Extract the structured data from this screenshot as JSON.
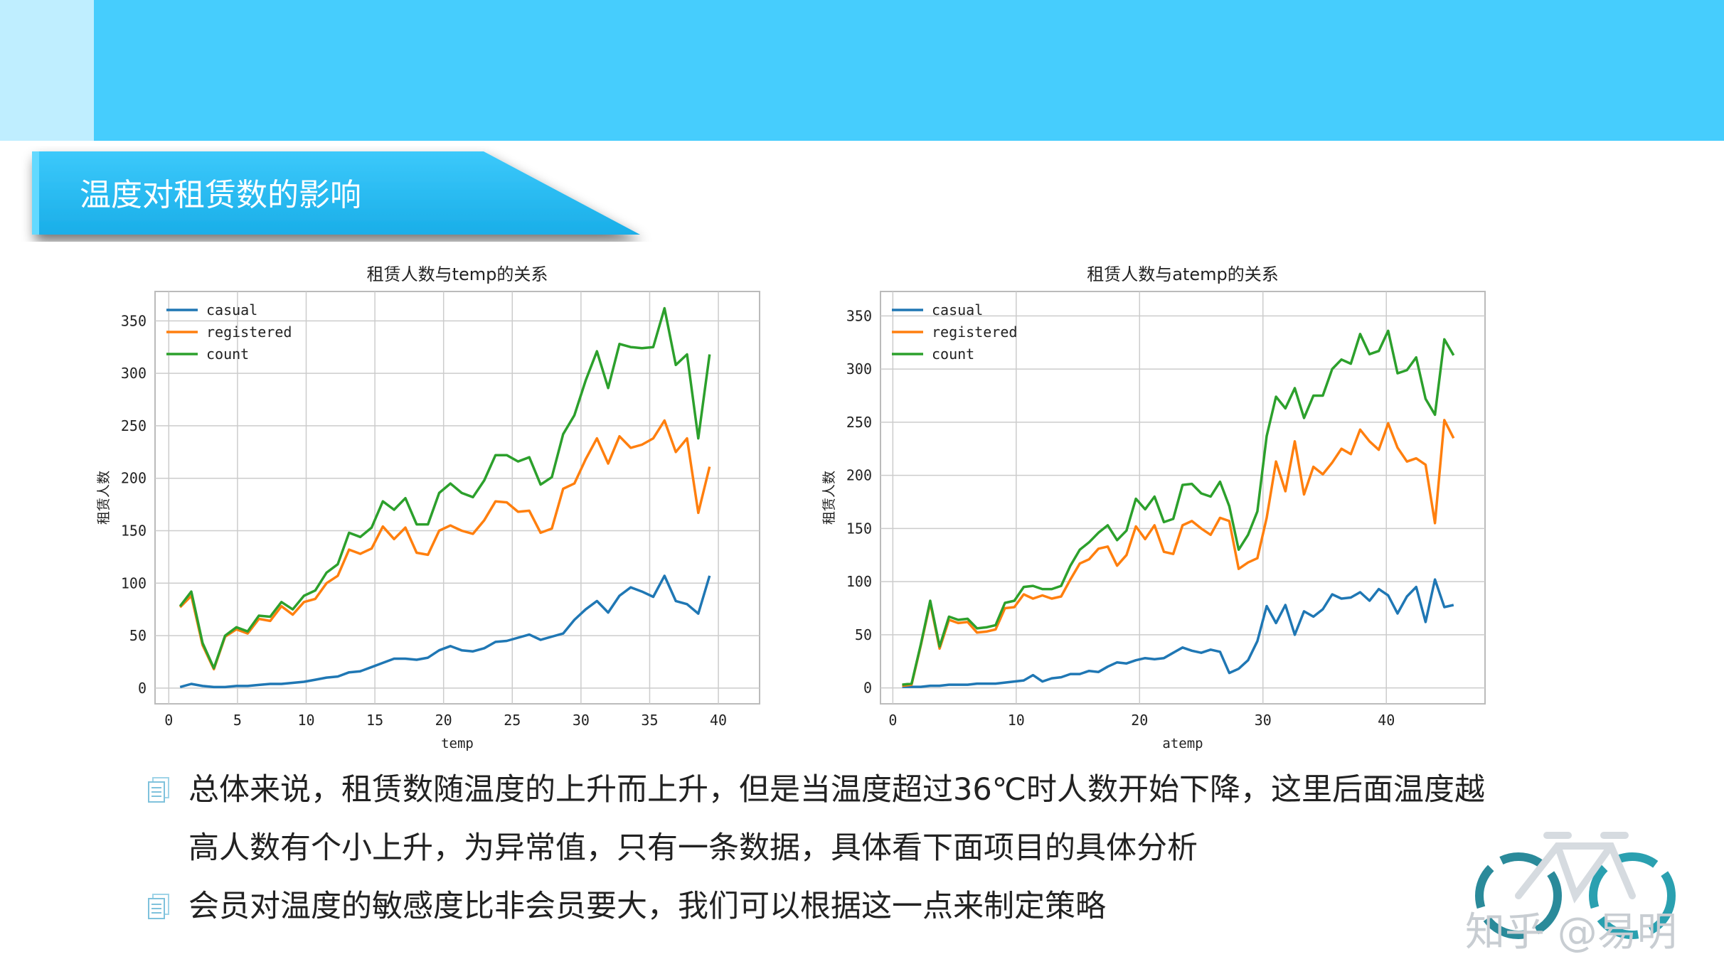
{
  "slide": {
    "title": "温度对租赁数的影响",
    "bullets": [
      "总体来说，租赁数随温度的上升而上升，但是当温度超过36℃时人数开始下降，这里后面温度越高人数有个小上升，为异常值，只有一条数据，具体看下面项目的具体分析",
      "会员对温度的敏感度比非会员要大，我们可以根据这一点来制定策略"
    ],
    "watermark": "知乎 @易明",
    "colors": {
      "accent": "#46cdfd",
      "accent_light": "#bfeeff",
      "casual": "#1f77b4",
      "registered": "#ff7f0e",
      "count": "#2ca02c"
    }
  },
  "chart_data": [
    {
      "type": "line",
      "title": "租赁人数与temp的关系",
      "xlabel": "temp",
      "ylabel": "租赁人数",
      "xlim": [
        -1,
        43
      ],
      "ylim": [
        -15,
        378
      ],
      "xticks": [
        0,
        5,
        10,
        15,
        20,
        25,
        30,
        35,
        40
      ],
      "yticks": [
        0,
        50,
        100,
        150,
        200,
        250,
        300,
        350
      ],
      "grid": true,
      "legend": "top-left",
      "series": [
        {
          "name": "casual",
          "x": [
            0.82,
            1.64,
            2.46,
            3.28,
            4.1,
            4.92,
            5.74,
            6.56,
            7.38,
            8.2,
            9.02,
            9.84,
            10.66,
            11.48,
            12.3,
            13.12,
            13.94,
            14.76,
            15.58,
            16.4,
            17.22,
            18.04,
            18.86,
            19.68,
            20.5,
            21.32,
            22.14,
            22.96,
            23.78,
            24.6,
            25.42,
            26.24,
            27.06,
            27.88,
            28.7,
            29.52,
            30.34,
            31.16,
            31.98,
            32.8,
            33.62,
            34.44,
            35.26,
            36.08,
            36.9,
            37.72,
            38.54,
            39.36
          ],
          "values": [
            1,
            4,
            2,
            1,
            1,
            2,
            2,
            3,
            4,
            4,
            5,
            6,
            8,
            10,
            11,
            15,
            16,
            20,
            24,
            28,
            28,
            27,
            29,
            36,
            40,
            36,
            35,
            38,
            44,
            45,
            48,
            51,
            46,
            49,
            52,
            65,
            75,
            83,
            72,
            88,
            96,
            92,
            87,
            107,
            83,
            80,
            71,
            107
          ]
        },
        {
          "name": "registered",
          "x": [
            0.82,
            1.64,
            2.46,
            3.28,
            4.1,
            4.92,
            5.74,
            6.56,
            7.38,
            8.2,
            9.02,
            9.84,
            10.66,
            11.48,
            12.3,
            13.12,
            13.94,
            14.76,
            15.58,
            16.4,
            17.22,
            18.04,
            18.86,
            19.68,
            20.5,
            21.32,
            22.14,
            22.96,
            23.78,
            24.6,
            25.42,
            26.24,
            27.06,
            27.88,
            28.7,
            29.52,
            30.34,
            31.16,
            31.98,
            32.8,
            33.62,
            34.44,
            35.26,
            36.08,
            36.9,
            37.72,
            38.54,
            39.36
          ],
          "values": [
            77,
            88,
            41,
            18,
            49,
            56,
            52,
            66,
            64,
            78,
            70,
            82,
            85,
            100,
            107,
            132,
            128,
            133,
            154,
            142,
            153,
            129,
            127,
            150,
            155,
            150,
            147,
            160,
            178,
            177,
            168,
            169,
            148,
            152,
            190,
            195,
            218,
            238,
            214,
            240,
            229,
            232,
            238,
            255,
            225,
            238,
            167,
            211
          ]
        },
        {
          "name": "count",
          "x": [
            0.82,
            1.64,
            2.46,
            3.28,
            4.1,
            4.92,
            5.74,
            6.56,
            7.38,
            8.2,
            9.02,
            9.84,
            10.66,
            11.48,
            12.3,
            13.12,
            13.94,
            14.76,
            15.58,
            16.4,
            17.22,
            18.04,
            18.86,
            19.68,
            20.5,
            21.32,
            22.14,
            22.96,
            23.78,
            24.6,
            25.42,
            26.24,
            27.06,
            27.88,
            28.7,
            29.52,
            30.34,
            31.16,
            31.98,
            32.8,
            33.62,
            34.44,
            35.26,
            36.08,
            36.9,
            37.72,
            38.54,
            39.36
          ],
          "values": [
            78,
            92,
            43,
            19,
            50,
            58,
            54,
            69,
            68,
            82,
            75,
            88,
            93,
            110,
            118,
            148,
            144,
            153,
            178,
            170,
            181,
            156,
            156,
            186,
            195,
            186,
            182,
            198,
            222,
            222,
            216,
            220,
            194,
            201,
            242,
            260,
            293,
            321,
            286,
            328,
            325,
            324,
            325,
            362,
            308,
            318,
            238,
            318
          ]
        }
      ]
    },
    {
      "type": "line",
      "title": "租赁人数与atemp的关系",
      "xlabel": "atemp",
      "ylabel": "租赁人数",
      "xlim": [
        -1,
        48
      ],
      "ylim": [
        -15,
        373
      ],
      "xticks": [
        0,
        10,
        20,
        30,
        40
      ],
      "yticks": [
        0,
        50,
        100,
        150,
        200,
        250,
        300,
        350
      ],
      "grid": true,
      "legend": "top-left",
      "series": [
        {
          "name": "casual",
          "x": [
            0.76,
            1.52,
            2.27,
            3.03,
            3.79,
            4.55,
            5.3,
            6.06,
            6.82,
            7.58,
            8.33,
            9.09,
            9.85,
            10.61,
            11.36,
            12.12,
            12.88,
            13.64,
            14.39,
            15.15,
            15.91,
            16.67,
            17.42,
            18.18,
            18.94,
            19.7,
            20.45,
            21.21,
            21.97,
            22.73,
            23.48,
            24.24,
            25.0,
            25.76,
            26.52,
            27.27,
            28.03,
            28.79,
            29.55,
            30.3,
            31.06,
            31.82,
            32.58,
            33.33,
            34.09,
            34.85,
            35.61,
            36.36,
            37.12,
            37.88,
            38.64,
            39.39,
            40.15,
            40.91,
            41.67,
            42.42,
            43.18,
            43.94,
            44.7,
            45.45
          ],
          "values": [
            1,
            1,
            1,
            2,
            2,
            3,
            3,
            3,
            4,
            4,
            4,
            5,
            6,
            7,
            12,
            6,
            9,
            10,
            13,
            13,
            16,
            15,
            20,
            24,
            23,
            26,
            28,
            27,
            28,
            33,
            38,
            35,
            33,
            36,
            34,
            14,
            18,
            26,
            44,
            77,
            61,
            78,
            50,
            72,
            67,
            74,
            88,
            84,
            85,
            90,
            82,
            93,
            87,
            70,
            86,
            95,
            62,
            102,
            76,
            78
          ],
          "trim_note": ""
        },
        {
          "name": "registered",
          "x": [
            0.76,
            1.52,
            2.27,
            3.03,
            3.79,
            4.55,
            5.3,
            6.06,
            6.82,
            7.58,
            8.33,
            9.09,
            9.85,
            10.61,
            11.36,
            12.12,
            12.88,
            13.64,
            14.39,
            15.15,
            15.91,
            16.67,
            17.42,
            18.18,
            18.94,
            19.7,
            20.45,
            21.21,
            21.97,
            22.73,
            23.48,
            24.24,
            25.0,
            25.76,
            26.52,
            27.27,
            28.03,
            28.79,
            29.55,
            30.3,
            31.06,
            31.82,
            32.58,
            33.33,
            34.09,
            34.85,
            35.61,
            36.36,
            37.12,
            37.88,
            38.64,
            39.39,
            40.15,
            40.91,
            41.67,
            42.42,
            43.18,
            43.94,
            44.7,
            45.45
          ],
          "values": [
            2,
            3,
            40,
            80,
            37,
            64,
            61,
            62,
            52,
            53,
            55,
            75,
            76,
            88,
            84,
            87,
            84,
            86,
            102,
            117,
            121,
            131,
            133,
            115,
            125,
            152,
            140,
            153,
            128,
            126,
            153,
            157,
            150,
            144,
            160,
            157,
            112,
            118,
            122,
            160,
            213,
            185,
            232,
            182,
            208,
            201,
            212,
            225,
            220,
            243,
            232,
            224,
            249,
            226,
            213,
            216,
            210,
            155,
            252,
            235
          ]
        },
        {
          "name": "count",
          "x": [
            0.76,
            1.52,
            2.27,
            3.03,
            3.79,
            4.55,
            5.3,
            6.06,
            6.82,
            7.58,
            8.33,
            9.09,
            9.85,
            10.61,
            11.36,
            12.12,
            12.88,
            13.64,
            14.39,
            15.15,
            15.91,
            16.67,
            17.42,
            18.18,
            18.94,
            19.7,
            20.45,
            21.21,
            21.97,
            22.73,
            23.48,
            24.24,
            25.0,
            25.76,
            26.52,
            27.27,
            28.03,
            28.79,
            29.55,
            30.3,
            31.06,
            31.82,
            32.58,
            33.33,
            34.09,
            34.85,
            35.61,
            36.36,
            37.12,
            37.88,
            38.64,
            39.39,
            40.15,
            40.91,
            41.67,
            42.42,
            43.18,
            43.94,
            44.7,
            45.45
          ],
          "values": [
            3,
            4,
            41,
            82,
            39,
            67,
            64,
            65,
            56,
            57,
            59,
            80,
            82,
            95,
            96,
            93,
            93,
            96,
            115,
            130,
            137,
            146,
            153,
            139,
            148,
            178,
            168,
            180,
            156,
            159,
            191,
            192,
            183,
            180,
            194,
            171,
            130,
            144,
            166,
            237,
            274,
            263,
            282,
            254,
            275,
            275,
            300,
            309,
            305,
            333,
            314,
            317,
            336,
            296,
            299,
            311,
            272,
            257,
            328,
            313
          ]
        }
      ]
    }
  ]
}
